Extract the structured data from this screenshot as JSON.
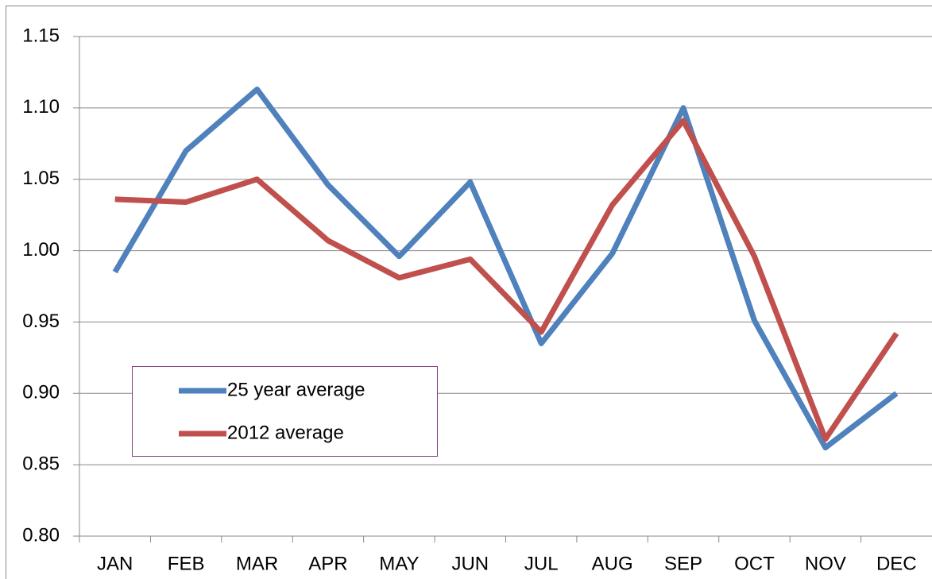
{
  "chart_data": {
    "type": "line",
    "categories": [
      "JAN",
      "FEB",
      "MAR",
      "APR",
      "MAY",
      "JUN",
      "JUL",
      "AUG",
      "SEP",
      "OCT",
      "NOV",
      "DEC"
    ],
    "series": [
      {
        "name": "25 year average",
        "color": "#4f81bd",
        "values": [
          0.985,
          1.07,
          1.113,
          1.046,
          0.996,
          1.048,
          0.935,
          0.998,
          1.1,
          0.951,
          0.862,
          0.9
        ]
      },
      {
        "name": "2012 average",
        "color": "#c0504d",
        "values": [
          1.036,
          1.034,
          1.05,
          1.007,
          0.981,
          0.994,
          0.943,
          1.032,
          1.091,
          0.996,
          0.868,
          0.942
        ]
      }
    ],
    "ylim": [
      0.8,
      1.15
    ],
    "yticks": [
      {
        "value": 0.8,
        "label": "0.80"
      },
      0.85,
      {
        "value": 0.9,
        "label": "0.90"
      },
      0.95,
      {
        "value": 1.0,
        "label": "1.00"
      },
      1.05,
      {
        "value": 1.1,
        "label": "1.10"
      },
      1.15
    ],
    "grid": true
  }
}
